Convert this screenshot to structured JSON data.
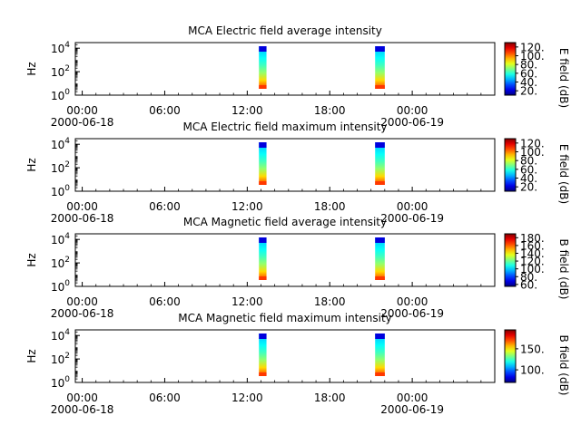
{
  "chart_data": [
    {
      "type": "heatmap",
      "title": "MCA  Electric field average intensity",
      "ylabel": "Hz",
      "colorbar_label": "E field (dB)",
      "colorbar_ticks": [
        20,
        40,
        60,
        80,
        100,
        120
      ],
      "colorbar_tick_labels": [
        "20.",
        "40.",
        "60.",
        "80.",
        "100.",
        "120."
      ],
      "colorbar_range": [
        10,
        130
      ],
      "y_scale": "log",
      "y_range": [
        1,
        30000
      ],
      "y_ticks": [
        {
          "base": "10",
          "exp": "0",
          "value": 1
        },
        {
          "base": "10",
          "exp": "2",
          "value": 100
        },
        {
          "base": "10",
          "exp": "4",
          "value": 10000
        }
      ],
      "x_range_hours": [
        -0.5,
        30
      ],
      "x_ticks": [
        {
          "hour": 0,
          "label": "00:00",
          "date": "2000-06-18"
        },
        {
          "hour": 6,
          "label": "06:00",
          "date": ""
        },
        {
          "hour": 12,
          "label": "12:00",
          "date": ""
        },
        {
          "hour": 18,
          "label": "18:00",
          "date": ""
        },
        {
          "hour": 24,
          "label": "00:00",
          "date": "2000-06-19"
        }
      ],
      "data_blocks_hours": [
        [
          12.85,
          13.4
        ],
        [
          21.3,
          22.0
        ]
      ],
      "top_band_color": "#0000dd",
      "grid": false
    },
    {
      "type": "heatmap",
      "title": "MCA  Electric field maximum intensity",
      "ylabel": "Hz",
      "colorbar_label": "E field (dB)",
      "colorbar_ticks": [
        20,
        40,
        60,
        80,
        100,
        120
      ],
      "colorbar_tick_labels": [
        "20.",
        "40.",
        "60.",
        "80.",
        "100.",
        "120."
      ],
      "colorbar_range": [
        10,
        130
      ],
      "y_scale": "log",
      "y_range": [
        1,
        30000
      ],
      "y_ticks": [
        {
          "base": "10",
          "exp": "0",
          "value": 1
        },
        {
          "base": "10",
          "exp": "2",
          "value": 100
        },
        {
          "base": "10",
          "exp": "4",
          "value": 10000
        }
      ],
      "x_range_hours": [
        -0.5,
        30
      ],
      "x_ticks": [
        {
          "hour": 0,
          "label": "00:00",
          "date": "2000-06-18"
        },
        {
          "hour": 6,
          "label": "06:00",
          "date": ""
        },
        {
          "hour": 12,
          "label": "12:00",
          "date": ""
        },
        {
          "hour": 18,
          "label": "18:00",
          "date": ""
        },
        {
          "hour": 24,
          "label": "00:00",
          "date": "2000-06-19"
        }
      ],
      "data_blocks_hours": [
        [
          12.85,
          13.4
        ],
        [
          21.3,
          22.0
        ]
      ],
      "top_band_color": "#0000dd",
      "grid": false
    },
    {
      "type": "heatmap",
      "title": "MCA  Magnetic field average intensity",
      "ylabel": "Hz",
      "colorbar_label": "B field (dB)",
      "colorbar_ticks": [
        60,
        80,
        100,
        120,
        140,
        160,
        180
      ],
      "colorbar_tick_labels": [
        "60.",
        "80.",
        "100.",
        "120.",
        "140.",
        "160.",
        "180."
      ],
      "colorbar_range": [
        55,
        190
      ],
      "y_scale": "log",
      "y_range": [
        1,
        30000
      ],
      "y_ticks": [
        {
          "base": "10",
          "exp": "0",
          "value": 1
        },
        {
          "base": "10",
          "exp": "2",
          "value": 100
        },
        {
          "base": "10",
          "exp": "4",
          "value": 10000
        }
      ],
      "x_range_hours": [
        -0.5,
        30
      ],
      "x_ticks": [
        {
          "hour": 0,
          "label": "00:00",
          "date": "2000-06-18"
        },
        {
          "hour": 6,
          "label": "06:00",
          "date": ""
        },
        {
          "hour": 12,
          "label": "12:00",
          "date": ""
        },
        {
          "hour": 18,
          "label": "18:00",
          "date": ""
        },
        {
          "hour": 24,
          "label": "00:00",
          "date": "2000-06-19"
        }
      ],
      "data_blocks_hours": [
        [
          12.85,
          13.4
        ],
        [
          21.3,
          22.0
        ]
      ],
      "top_band_color": "#0000dd",
      "grid": false
    },
    {
      "type": "heatmap",
      "title": "MCA  Magnetic field maximum intensity",
      "ylabel": "Hz",
      "colorbar_label": "B field (dB)",
      "colorbar_ticks": [
        100,
        150
      ],
      "colorbar_tick_labels": [
        "100.",
        "150."
      ],
      "colorbar_range": [
        70,
        195
      ],
      "y_scale": "log",
      "y_range": [
        1,
        30000
      ],
      "y_ticks": [
        {
          "base": "10",
          "exp": "0",
          "value": 1
        },
        {
          "base": "10",
          "exp": "2",
          "value": 100
        },
        {
          "base": "10",
          "exp": "4",
          "value": 10000
        }
      ],
      "x_range_hours": [
        -0.5,
        30
      ],
      "x_ticks": [
        {
          "hour": 0,
          "label": "00:00",
          "date": "2000-06-18"
        },
        {
          "hour": 6,
          "label": "06:00",
          "date": ""
        },
        {
          "hour": 12,
          "label": "12:00",
          "date": ""
        },
        {
          "hour": 18,
          "label": "18:00",
          "date": ""
        },
        {
          "hour": 24,
          "label": "00:00",
          "date": "2000-06-19"
        }
      ],
      "data_blocks_hours": [
        [
          12.85,
          13.4
        ],
        [
          21.3,
          22.0
        ]
      ],
      "top_band_color": "#0000dd",
      "grid": false
    }
  ]
}
